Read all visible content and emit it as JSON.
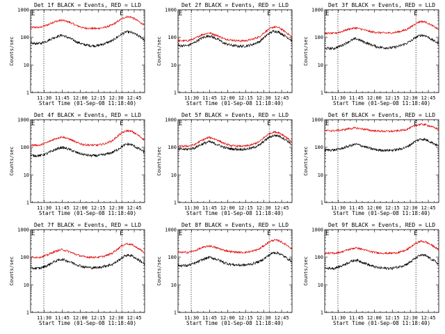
{
  "chart_data": {
    "type": "line",
    "layout": "3x3 grid of detector rate panels",
    "title_suffix": "BLACK = Events, RED = LLD",
    "xlabel": "Start Time (01-Sep-08 11:18:40)",
    "ylabel": "Counts/sec",
    "yscale": "log",
    "ylim": [
      1,
      1000
    ],
    "ytick_labels": [
      "1",
      "10",
      "100",
      "1000"
    ],
    "xlim_min_after_start": [
      0,
      95
    ],
    "xtick_labels": [
      "11:30",
      "11:45",
      "12:00",
      "12:15",
      "12:30",
      "12:45"
    ],
    "xticks_min_after_start": [
      11.33,
      26.33,
      41.33,
      56.33,
      71.33,
      86.33
    ],
    "series_names": [
      "Events",
      "LLD"
    ],
    "series_colors": {
      "Events": "#000000",
      "LLD": "#e00000"
    },
    "marker_label": "E",
    "sample_times_min": [
      0,
      8,
      14,
      20,
      26,
      32,
      38,
      44,
      50,
      56,
      62,
      68,
      72,
      76,
      80,
      84,
      88,
      92,
      95
    ],
    "panels": [
      {
        "title": "Det 1f BLACK = Events, RED = LLD",
        "dashed_lines_min": [
          11,
          76
        ],
        "marker_positions_min": [
          0,
          76
        ],
        "events": [
          60,
          60,
          75,
          100,
          120,
          95,
          70,
          55,
          50,
          50,
          60,
          75,
          100,
          130,
          160,
          150,
          125,
          100,
          80
        ],
        "lld": [
          230,
          230,
          280,
          370,
          420,
          360,
          270,
          220,
          210,
          210,
          230,
          280,
          360,
          470,
          560,
          540,
          430,
          330,
          280
        ]
      },
      {
        "title": "Det 2f BLACK = Events, RED = LLD",
        "dashed_lines_min": [
          11,
          76
        ],
        "marker_positions_min": [
          0,
          76
        ],
        "events": [
          50,
          50,
          65,
          95,
          115,
          90,
          62,
          52,
          48,
          48,
          55,
          70,
          100,
          140,
          170,
          155,
          120,
          95,
          75
        ],
        "lld": [
          75,
          75,
          90,
          125,
          145,
          120,
          90,
          80,
          75,
          75,
          85,
          105,
          150,
          200,
          240,
          225,
          175,
          130,
          100
        ]
      },
      {
        "title": "Det 3f BLACK = Events, RED = LLD",
        "dashed_lines_min": [
          11,
          76
        ],
        "marker_positions_min": [
          0,
          76
        ],
        "events": [
          40,
          40,
          50,
          70,
          90,
          70,
          55,
          45,
          42,
          42,
          48,
          60,
          75,
          100,
          120,
          115,
          90,
          70,
          60
        ],
        "lld": [
          140,
          140,
          160,
          200,
          220,
          190,
          160,
          150,
          145,
          145,
          160,
          190,
          240,
          320,
          380,
          360,
          290,
          230,
          190
        ]
      },
      {
        "title": "Det 4f BLACK = Events, RED = LLD",
        "dashed_lines_min": [
          11,
          76
        ],
        "marker_positions_min": [
          0,
          76
        ],
        "events": [
          50,
          50,
          60,
          80,
          100,
          85,
          65,
          55,
          50,
          50,
          55,
          65,
          80,
          105,
          130,
          125,
          100,
          80,
          65
        ],
        "lld": [
          120,
          120,
          150,
          200,
          240,
          200,
          150,
          125,
          120,
          120,
          135,
          170,
          240,
          330,
          400,
          380,
          300,
          230,
          180
        ]
      },
      {
        "title": "Det 5f BLACK = Events, RED = LLD",
        "dashed_lines_min": [
          11,
          76
        ],
        "marker_positions_min": [
          0,
          76
        ],
        "events": [
          85,
          85,
          95,
          130,
          160,
          130,
          100,
          88,
          85,
          85,
          95,
          120,
          170,
          230,
          270,
          260,
          210,
          160,
          120
        ],
        "lld": [
          110,
          110,
          125,
          180,
          230,
          190,
          140,
          115,
          110,
          110,
          125,
          160,
          230,
          310,
          360,
          340,
          270,
          200,
          150
        ]
      },
      {
        "title": "Det 6f BLACK = Events, RED = LLD",
        "dashed_lines_min": [
          11,
          76
        ],
        "marker_positions_min": [
          0,
          76
        ],
        "events": [
          80,
          80,
          90,
          110,
          130,
          110,
          90,
          80,
          78,
          78,
          85,
          100,
          130,
          170,
          200,
          190,
          160,
          130,
          110
        ],
        "lld": [
          400,
          400,
          420,
          470,
          500,
          460,
          410,
          390,
          380,
          380,
          400,
          440,
          520,
          620,
          680,
          660,
          580,
          500,
          450
        ]
      },
      {
        "title": "Det 7f BLACK = Events, RED = LLD",
        "dashed_lines_min": [
          11,
          76
        ],
        "marker_positions_min": [
          0,
          76
        ],
        "events": [
          40,
          40,
          50,
          70,
          85,
          70,
          55,
          45,
          42,
          42,
          48,
          55,
          70,
          95,
          120,
          115,
          90,
          70,
          55
        ],
        "lld": [
          100,
          100,
          120,
          160,
          190,
          160,
          125,
          105,
          100,
          100,
          110,
          140,
          190,
          260,
          310,
          290,
          230,
          180,
          140
        ]
      },
      {
        "title": "Det 8f BLACK = Events, RED = LLD",
        "dashed_lines_min": [
          11,
          76
        ],
        "marker_positions_min": [
          0,
          76
        ],
        "events": [
          50,
          50,
          60,
          80,
          100,
          85,
          65,
          55,
          52,
          52,
          58,
          70,
          90,
          120,
          150,
          140,
          110,
          85,
          70
        ],
        "lld": [
          150,
          150,
          170,
          220,
          260,
          220,
          180,
          160,
          150,
          150,
          165,
          200,
          270,
          360,
          420,
          400,
          320,
          250,
          200
        ]
      },
      {
        "title": "Det 9f BLACK = Events, RED = LLD",
        "dashed_lines_min": [
          11,
          76
        ],
        "marker_positions_min": [
          0,
          76
        ],
        "events": [
          40,
          40,
          48,
          65,
          80,
          65,
          50,
          42,
          40,
          40,
          45,
          55,
          70,
          95,
          120,
          115,
          90,
          70,
          55
        ],
        "lld": [
          140,
          140,
          155,
          190,
          220,
          190,
          160,
          145,
          140,
          140,
          150,
          180,
          240,
          320,
          380,
          360,
          290,
          230,
          180
        ]
      }
    ]
  }
}
